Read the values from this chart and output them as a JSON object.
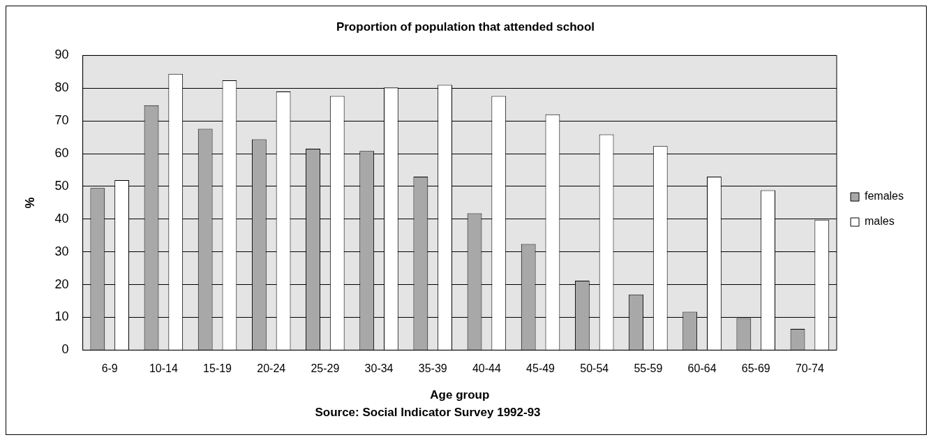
{
  "chart_data": {
    "type": "bar",
    "title": "Proportion of population that attended school",
    "xlabel": "Age group",
    "ylabel": "%",
    "annotations": [
      "Source: Social Indicator Survey 1992-93"
    ],
    "categories": [
      "6-9",
      "10-14",
      "15-19",
      "20-24",
      "25-29",
      "30-34",
      "35-39",
      "40-44",
      "45-49",
      "50-54",
      "55-59",
      "60-64",
      "65-69",
      "70-74"
    ],
    "series": [
      {
        "name": "females",
        "color": "#a8a8a8",
        "values": [
          49.5,
          74.8,
          67.6,
          64.4,
          61.5,
          60.8,
          53,
          41.8,
          32.4,
          21.2,
          17,
          11.7,
          9.8,
          6.5
        ]
      },
      {
        "name": "males",
        "color": "#ffffff",
        "values": [
          51.9,
          84.4,
          82.4,
          79,
          77.6,
          80.2,
          81,
          77.6,
          72,
          65.9,
          62.3,
          53,
          48.8,
          39.8
        ]
      }
    ],
    "ylim": [
      0,
      90
    ],
    "yticks": [
      0,
      10,
      20,
      30,
      40,
      50,
      60,
      70,
      80,
      90
    ],
    "grid": "y",
    "legend": "right"
  }
}
